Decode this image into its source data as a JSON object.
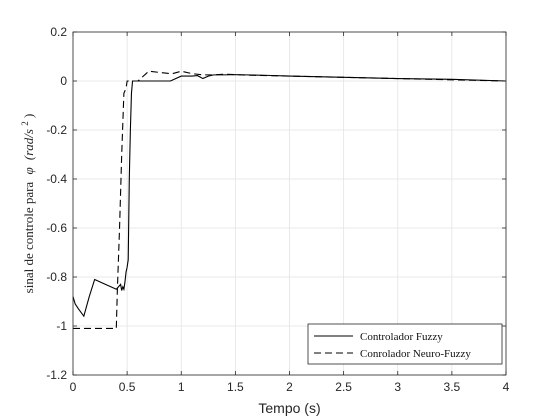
{
  "chart_data": {
    "type": "line",
    "title": "",
    "xlabel": "Tempo (s)",
    "ylabel_prefix": "sinal de controle para",
    "ylabel_symbol": "φ",
    "ylabel_unit": "(rad/s",
    "ylabel_unit_exp": "2",
    "ylabel_unit_close": ")",
    "xlim": [
      0,
      4
    ],
    "ylim": [
      -1.2,
      0.2
    ],
    "xticks": [
      0,
      0.5,
      1,
      1.5,
      2,
      2.5,
      3,
      3.5,
      4
    ],
    "yticks": [
      -1.2,
      -1,
      -0.8,
      -0.6,
      -0.4,
      -0.2,
      0,
      0.2
    ],
    "grid": true,
    "legend_position": "bottom-right",
    "series": [
      {
        "name": "Controlador Fuzzy",
        "style": "solid",
        "color": "#000000",
        "x": [
          0,
          0.02,
          0.05,
          0.1,
          0.15,
          0.2,
          0.3,
          0.4,
          0.44,
          0.45,
          0.46,
          0.47,
          0.48,
          0.49,
          0.5,
          0.51,
          0.52,
          0.53,
          0.54,
          0.55,
          0.56,
          0.58,
          0.6,
          0.7,
          0.8,
          0.9,
          1.0,
          1.1,
          1.15,
          1.2,
          1.25,
          1.3,
          1.4,
          1.5,
          1.6,
          1.8,
          2.0,
          2.2,
          2.5,
          3.0,
          3.5,
          4.0
        ],
        "y": [
          -0.88,
          -0.91,
          -0.93,
          -0.96,
          -0.88,
          -0.81,
          -0.83,
          -0.85,
          -0.83,
          -0.855,
          -0.84,
          -0.85,
          -0.82,
          -0.78,
          -0.76,
          -0.73,
          -0.4,
          -0.2,
          -0.05,
          0.0,
          0.0,
          0.0,
          0.0,
          0.0,
          0.0,
          0.0,
          0.02,
          0.02,
          0.022,
          0.01,
          0.02,
          0.025,
          0.025,
          0.026,
          0.025,
          0.023,
          0.02,
          0.018,
          0.015,
          0.01,
          0.007,
          0.0
        ]
      },
      {
        "name": "Conrolador Neuro-Fuzzy",
        "style": "dashed",
        "color": "#000000",
        "x": [
          0,
          0.1,
          0.2,
          0.3,
          0.4,
          0.41,
          0.43,
          0.45,
          0.47,
          0.49,
          0.5,
          0.52,
          0.6,
          0.7,
          0.8,
          0.9,
          0.92,
          1.0,
          1.1,
          1.2,
          1.3,
          1.4,
          1.5,
          1.6,
          1.8,
          2.0,
          2.5,
          3.0,
          3.5,
          4.0
        ],
        "y": [
          -1.01,
          -1.01,
          -1.01,
          -1.01,
          -1.01,
          -0.85,
          -0.6,
          -0.3,
          -0.05,
          -0.03,
          0.0,
          0.0,
          0.0,
          0.04,
          0.035,
          0.03,
          0.03,
          0.04,
          0.03,
          0.025,
          0.025,
          0.028,
          0.026,
          0.024,
          0.022,
          0.02,
          0.015,
          0.01,
          0.005,
          0.0
        ]
      }
    ]
  }
}
